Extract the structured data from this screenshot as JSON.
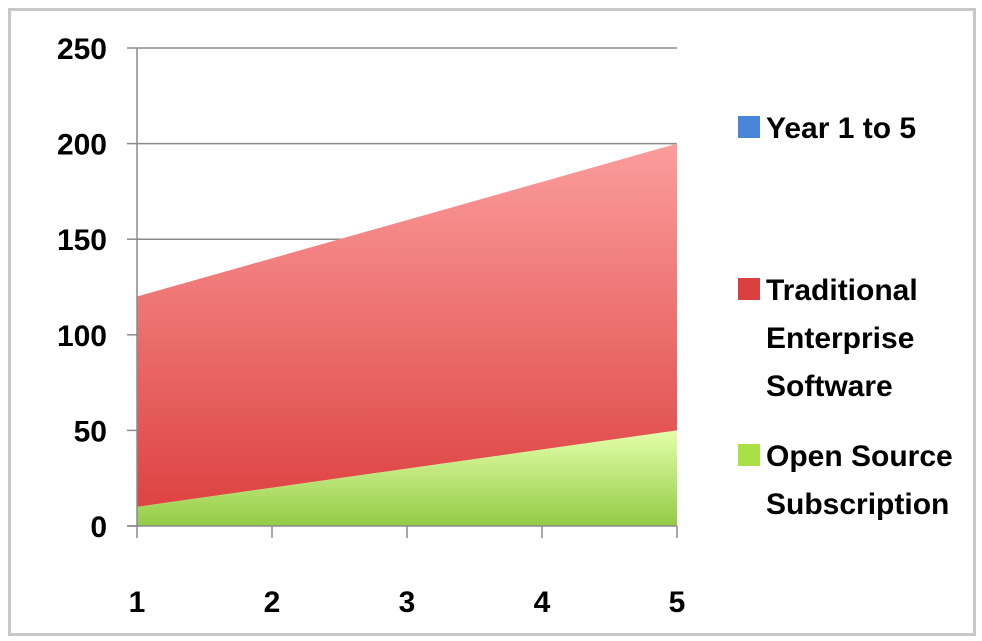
{
  "chart_data": {
    "type": "area",
    "stacked": true,
    "x": [
      1,
      2,
      3,
      4,
      5
    ],
    "series": [
      {
        "name": "Year 1 to 5",
        "values": [
          null,
          null,
          null,
          null,
          null
        ],
        "color": "#4a86d8"
      },
      {
        "name": "Traditional Enterprise Software",
        "values": [
          110,
          120,
          130,
          140,
          150
        ],
        "color": "#e0484a",
        "top_color": "#f99a9a"
      },
      {
        "name": "Open Source Subscription",
        "values": [
          10,
          20,
          30,
          40,
          50
        ],
        "color": "#8cc63f",
        "top_color": "#e2ffa6"
      }
    ],
    "legend": [
      {
        "lines": [
          "Year 1 to 5"
        ],
        "color": "#4a86d8"
      },
      {
        "lines": [
          "Traditional",
          "Enterprise",
          "Software"
        ],
        "color": "#d9403f"
      },
      {
        "lines": [
          "Open Source",
          "Subscription"
        ],
        "color": "#a9e046"
      }
    ],
    "x_ticks": [
      "1",
      "2",
      "3",
      "4",
      "5"
    ],
    "y_ticks": [
      "0",
      "50",
      "100",
      "150",
      "200",
      "250"
    ],
    "ylim": [
      0,
      250
    ],
    "xlim": [
      1,
      5
    ],
    "grid": "horizontal",
    "legend_position": "right",
    "title": "",
    "xlabel": "",
    "ylabel": ""
  }
}
